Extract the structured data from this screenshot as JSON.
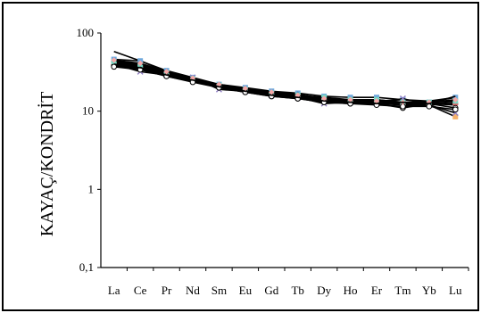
{
  "chart_data": {
    "type": "line",
    "title": "",
    "xlabel": "",
    "ylabel": "KAYAÇ/KONDRİT",
    "yscale": "log",
    "ylim": [
      0.1,
      100
    ],
    "yticks": [
      "0,1",
      "1",
      "10",
      "100"
    ],
    "ytick_values": [
      0.1,
      1,
      10,
      100
    ],
    "grid": false,
    "legend": "none",
    "categories": [
      "La",
      "Ce",
      "Pr",
      "Nd",
      "Sm",
      "Eu",
      "Gd",
      "Tb",
      "Dy",
      "Ho",
      "Er",
      "Tm",
      "Yb",
      "Lu"
    ],
    "series": [
      {
        "color": "#000000",
        "marker": "none",
        "values": [
          58,
          44,
          32,
          26,
          21,
          19,
          17,
          16,
          14.5,
          14,
          13.5,
          14,
          13.5,
          15
        ]
      },
      {
        "color": "#6fa8dc",
        "marker": "square",
        "values": [
          46,
          44,
          33,
          27,
          22,
          20,
          18,
          17,
          15.5,
          15,
          15,
          14,
          13,
          15
        ]
      },
      {
        "color": "#3d85c6",
        "marker": "diamond",
        "values": [
          44,
          40,
          31,
          26,
          22,
          19.5,
          17.5,
          16.5,
          14.5,
          14,
          14,
          13,
          12.5,
          12
        ]
      },
      {
        "color": "#9bbb59",
        "marker": "triangle",
        "values": [
          42,
          38,
          30,
          25,
          21,
          19,
          17,
          15.5,
          14,
          13.5,
          13,
          12.5,
          12.5,
          13
        ]
      },
      {
        "color": "#f6b26b",
        "marker": "square",
        "values": [
          41,
          37,
          30,
          25,
          21,
          18.5,
          16.5,
          15.5,
          14,
          13.5,
          13,
          12.5,
          12,
          8.5
        ]
      },
      {
        "color": "#8e7cc3",
        "marker": "x",
        "values": [
          40,
          32,
          29,
          27,
          19,
          18,
          16,
          15,
          12.5,
          13,
          12.5,
          14.5,
          12,
          9.5
        ]
      },
      {
        "color": "#e06666",
        "marker": "circle",
        "values": [
          39,
          36,
          29,
          24,
          20.5,
          18,
          16,
          15,
          13.5,
          13,
          12.5,
          12,
          12,
          12.5
        ]
      },
      {
        "color": "#000000",
        "marker": "circle",
        "values": [
          38,
          35,
          28,
          24,
          20,
          17.5,
          15.5,
          14.5,
          13,
          12.5,
          12.5,
          11,
          12.5,
          11
        ]
      },
      {
        "color": "#76d7c4",
        "marker": "square",
        "values": [
          43,
          39,
          31,
          26,
          21.5,
          19,
          17,
          16,
          15,
          14,
          14,
          13,
          13,
          13.5
        ]
      },
      {
        "color": "#000000",
        "marker": "circle",
        "values": [
          37,
          34,
          28,
          23.5,
          20,
          17.5,
          15.5,
          14.5,
          13,
          12.5,
          12,
          11.5,
          11.5,
          10.5
        ]
      },
      {
        "color": "#f4a7a7",
        "marker": "diamond",
        "values": [
          45,
          41,
          32,
          26.5,
          22,
          19.5,
          17.5,
          16,
          14.5,
          14,
          13.5,
          13,
          13,
          14
        ]
      },
      {
        "color": "#000000",
        "marker": "none",
        "values": [
          40,
          36,
          29,
          25,
          20.5,
          18,
          16,
          15,
          13.5,
          13,
          12.5,
          13,
          12.5,
          15.5
        ]
      }
    ]
  }
}
